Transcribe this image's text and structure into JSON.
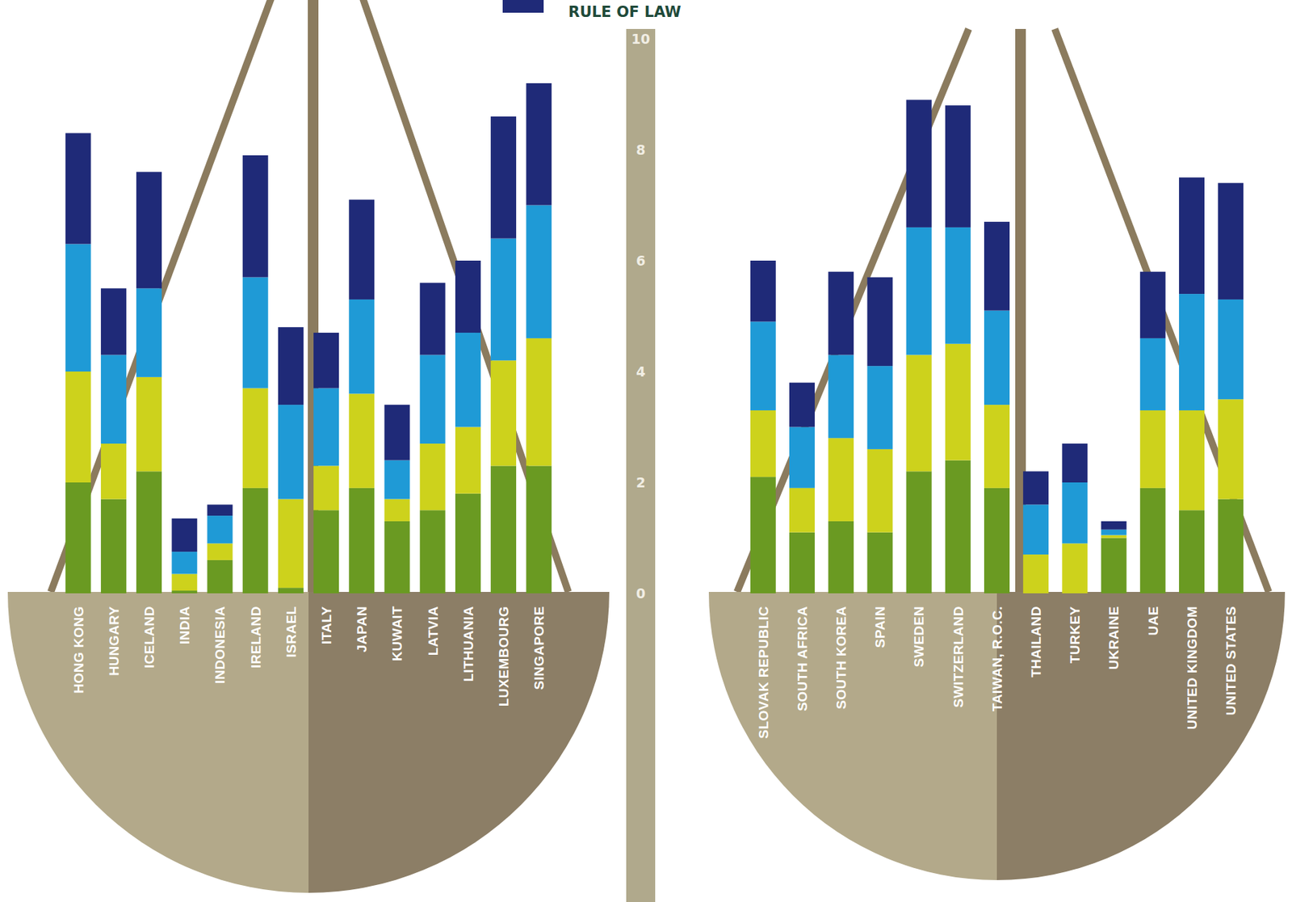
{
  "chart_data": {
    "type": "bar",
    "stacked": true,
    "legend": "top",
    "categories": [
      "HONG KONG",
      "HUNGARY",
      "ICELAND",
      "INDIA",
      "INDONESIA",
      "IRELAND",
      "ISRAEL",
      "ITALY",
      "JAPAN",
      "KUWAIT",
      "LATVIA",
      "LITHUANIA",
      "LUXEMBOURG",
      "SINGAPORE",
      "SLOVAK REPUBLIC",
      "SOUTH AFRICA",
      "SOUTH KOREA",
      "SPAIN",
      "SWEDEN",
      "SWITZERLAND",
      "TAIWAN, R.O.C.",
      "THAILAND",
      "TURKEY",
      "UKRAINE",
      "UAE",
      "UNITED KINGDOM",
      "UNITED STATES"
    ],
    "series": [
      {
        "name": null,
        "color": "#6a9a22",
        "values": [
          2.0,
          1.7,
          2.2,
          0.05,
          0.6,
          1.9,
          0.1,
          1.5,
          1.9,
          1.3,
          1.5,
          1.8,
          2.3,
          2.3,
          2.1,
          1.1,
          1.3,
          1.1,
          2.2,
          2.4,
          1.9,
          0.0,
          0.0,
          1.0,
          1.9,
          1.5,
          1.7
        ]
      },
      {
        "name": null,
        "color": "#cdd21c",
        "values": [
          2.0,
          1.0,
          1.7,
          0.3,
          0.3,
          1.8,
          1.6,
          0.8,
          1.7,
          0.4,
          1.2,
          1.2,
          1.9,
          2.3,
          1.2,
          0.8,
          1.5,
          1.5,
          2.1,
          2.1,
          1.5,
          0.7,
          0.9,
          0.05,
          1.4,
          1.8,
          1.8
        ]
      },
      {
        "name": null,
        "color": "#1f9ad6",
        "values": [
          2.3,
          1.6,
          1.6,
          0.4,
          0.5,
          2.0,
          1.7,
          1.4,
          1.7,
          0.7,
          1.6,
          1.7,
          2.2,
          2.4,
          1.6,
          1.1,
          1.5,
          1.5,
          2.3,
          2.1,
          1.7,
          0.9,
          1.1,
          0.1,
          1.3,
          2.1,
          1.8
        ]
      },
      {
        "name": "RULE OF LAW",
        "color": "#1f2a78",
        "values": [
          2.0,
          1.2,
          2.1,
          0.6,
          0.2,
          2.2,
          1.4,
          1.0,
          1.8,
          1.0,
          1.3,
          1.3,
          2.2,
          2.2,
          1.1,
          0.8,
          1.5,
          1.6,
          2.3,
          2.2,
          1.6,
          0.6,
          0.7,
          0.15,
          1.2,
          2.1,
          2.1
        ]
      }
    ],
    "ylim": [
      0,
      10
    ],
    "yticks": [
      0,
      2,
      4,
      6,
      8,
      10
    ],
    "grid": false
  }
}
